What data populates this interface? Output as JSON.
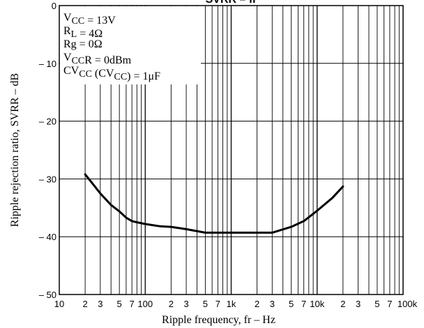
{
  "chart_data": {
    "type": "line",
    "title": "SVRR – fr",
    "xlabel": "Ripple frequency, fr  –  Hz",
    "ylabel": "Ripple rejection ratio, SVRR  –  dB",
    "x_scale": "log",
    "xlim": [
      10,
      100000
    ],
    "ylim": [
      -50,
      0
    ],
    "grid": true,
    "x_major_ticks": [
      {
        "value": 10,
        "label": "10"
      },
      {
        "value": 100,
        "label": "100"
      },
      {
        "value": 1000,
        "label": "1k"
      },
      {
        "value": 10000,
        "label": "10k"
      },
      {
        "value": 100000,
        "label": "100k"
      }
    ],
    "x_minor_ticks": [
      {
        "value": 20,
        "label": "2"
      },
      {
        "value": 30,
        "label": "3"
      },
      {
        "value": 50,
        "label": "5"
      },
      {
        "value": 70,
        "label": "7"
      },
      {
        "value": 200,
        "label": "2"
      },
      {
        "value": 300,
        "label": "3"
      },
      {
        "value": 500,
        "label": "5"
      },
      {
        "value": 700,
        "label": "7"
      },
      {
        "value": 2000,
        "label": "2"
      },
      {
        "value": 3000,
        "label": "3"
      },
      {
        "value": 5000,
        "label": "5"
      },
      {
        "value": 7000,
        "label": "7"
      },
      {
        "value": 20000,
        "label": "2"
      },
      {
        "value": 30000,
        "label": "3"
      },
      {
        "value": 50000,
        "label": "5"
      },
      {
        "value": 70000,
        "label": "7"
      }
    ],
    "x_unlabeled_gridlines": [
      40,
      60,
      80,
      90,
      400,
      600,
      800,
      900,
      4000,
      6000,
      8000,
      9000,
      40000,
      60000,
      80000,
      90000
    ],
    "y_ticks": [
      {
        "value": 0,
        "label": "0"
      },
      {
        "value": -10,
        "label": "– 10"
      },
      {
        "value": -20,
        "label": "– 20"
      },
      {
        "value": -30,
        "label": "– 30"
      },
      {
        "value": -40,
        "label": "– 40"
      },
      {
        "value": -50,
        "label": "– 50"
      }
    ],
    "conditions": [
      {
        "main": "V",
        "sub": "CC",
        "rest": " = 13V"
      },
      {
        "main": "R",
        "sub": "L",
        "rest": " = 4Ω"
      },
      {
        "main": "Rg = 0Ω",
        "sub": "",
        "rest": ""
      },
      {
        "main": "V",
        "sub": "CC",
        "rest": "R = 0dBm"
      },
      {
        "main": "CV",
        "sub": "CC",
        "rest": " (CV",
        "sub2": "CC",
        "rest2": ") = 1μF"
      }
    ],
    "series": [
      {
        "x": [
          20,
          25,
          30,
          40,
          50,
          60,
          70,
          80,
          100,
          150,
          200,
          300,
          500,
          700,
          1000,
          2000,
          3000,
          5000,
          7000,
          10000,
          15000,
          20000
        ],
        "y": [
          -29.2,
          -31.0,
          -32.5,
          -34.5,
          -35.6,
          -36.7,
          -37.3,
          -37.5,
          -37.8,
          -38.2,
          -38.3,
          -38.7,
          -39.3,
          -39.3,
          -39.3,
          -39.3,
          -39.3,
          -38.3,
          -37.3,
          -35.5,
          -33.3,
          -31.3
        ]
      }
    ]
  }
}
